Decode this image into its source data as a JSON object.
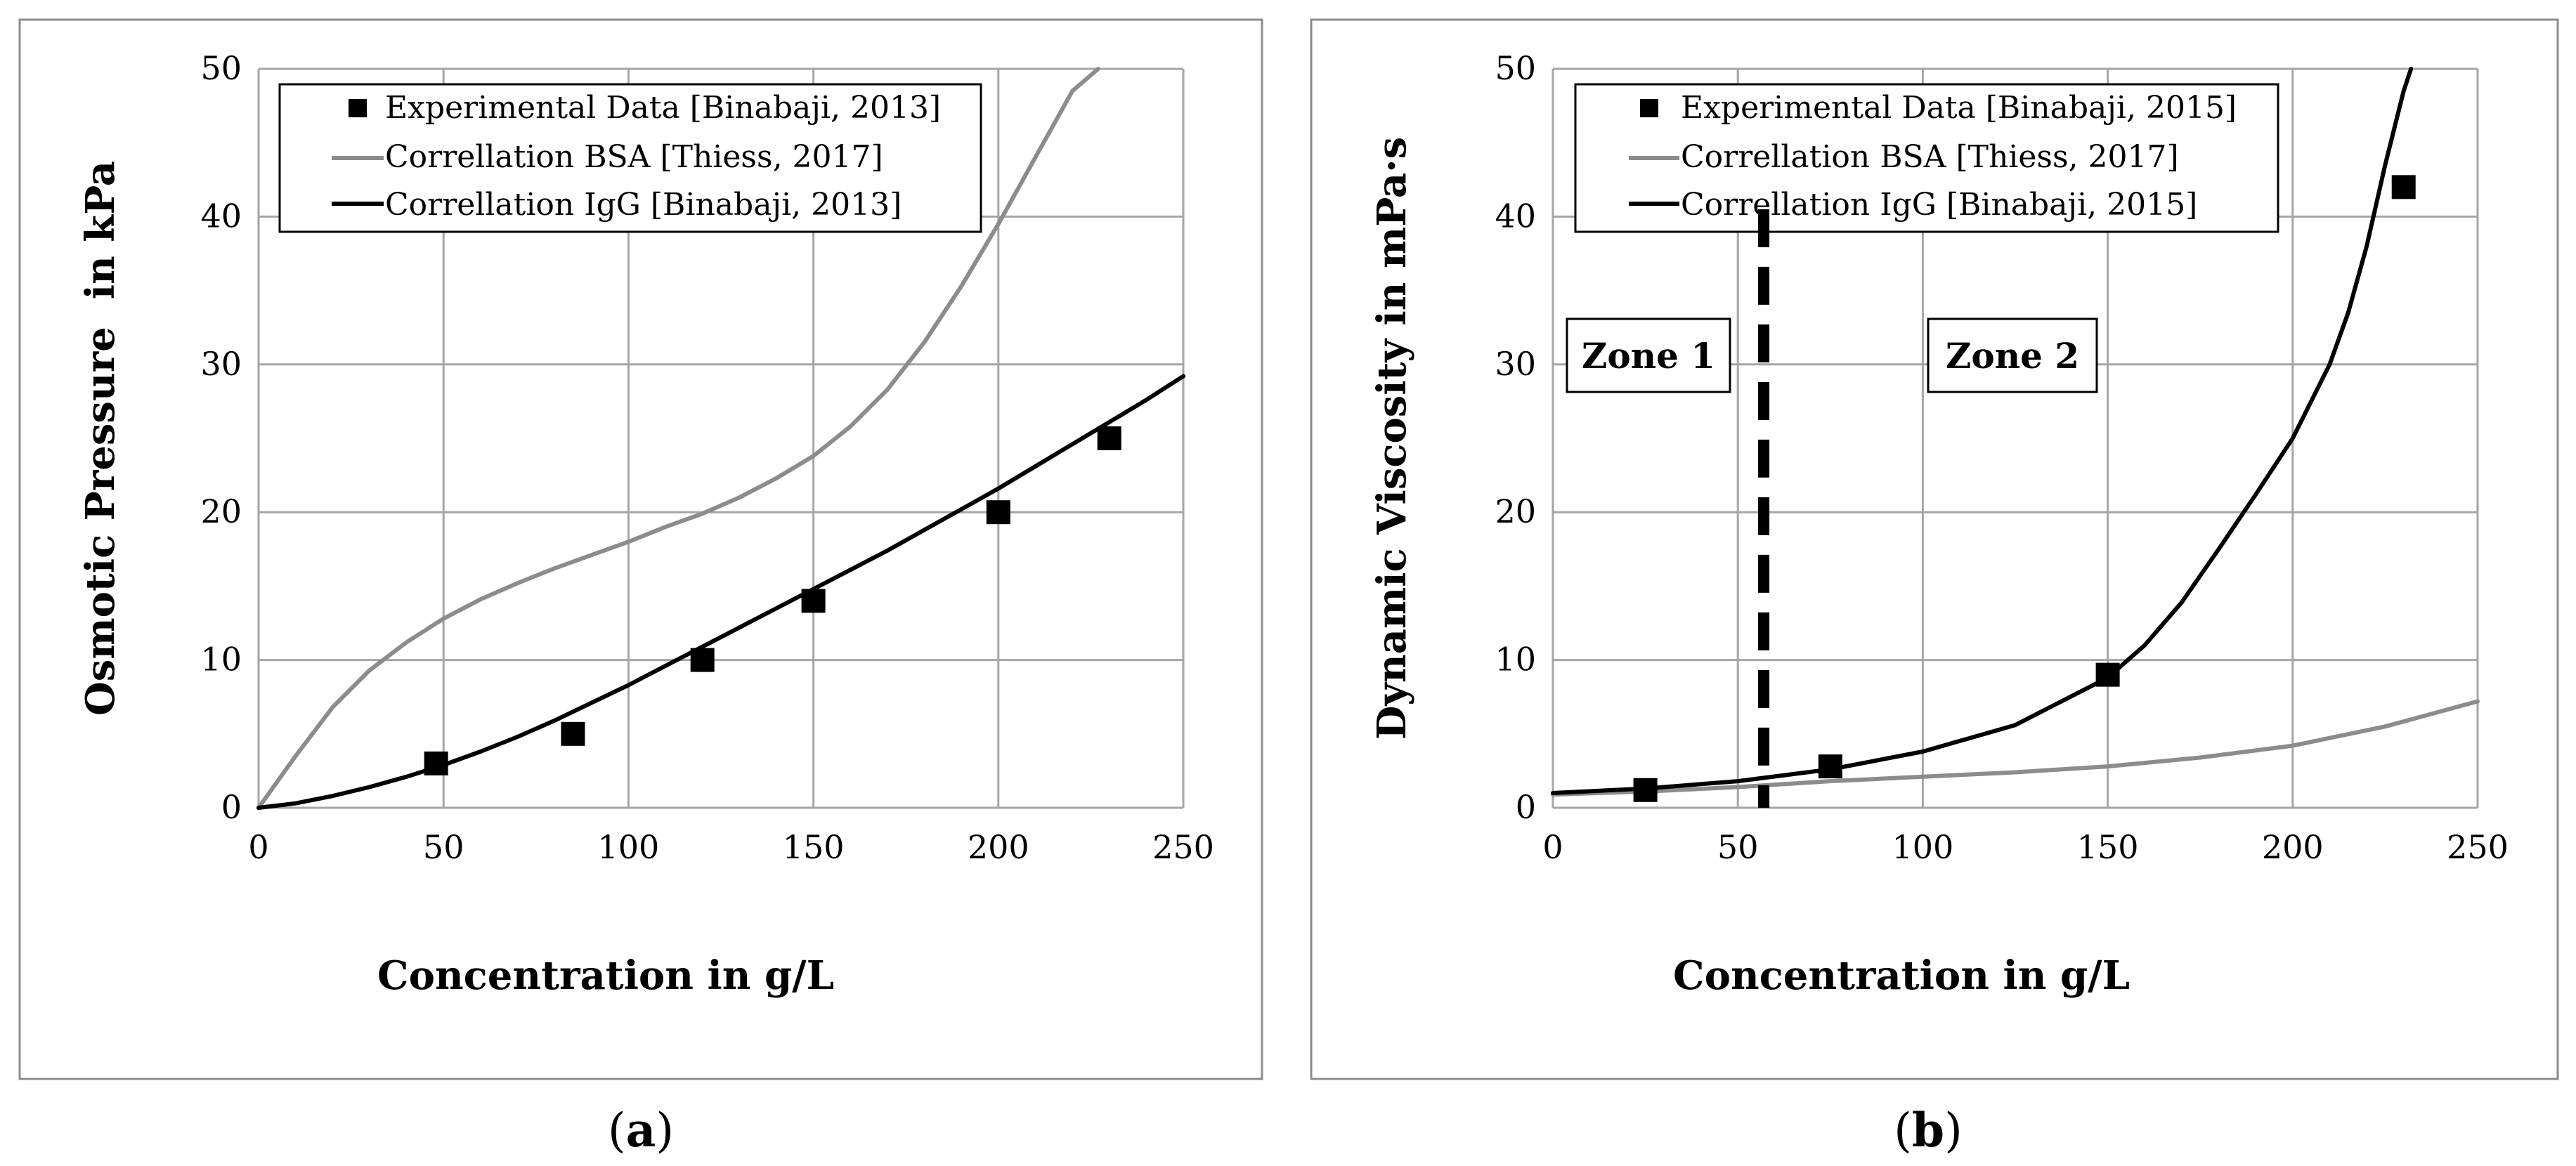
{
  "colors": {
    "experimental": "#000000",
    "bsa": "#8c8c8c",
    "igg": "#000000",
    "grid": "#a6a6a6",
    "frame": "#8c8c8c",
    "zone_line": "#000000"
  },
  "chart_data": [
    {
      "type": "line",
      "panel_label_open": "(",
      "panel_label_letter": "a",
      "panel_label_close": ")",
      "xlabel": "Concentration in g/L",
      "ylabel": "Osmotic Pressure  in kPa",
      "xlim": [
        0,
        250
      ],
      "ylim": [
        0,
        50
      ],
      "xticks": [
        0,
        50,
        100,
        150,
        200,
        250
      ],
      "yticks": [
        0,
        10,
        20,
        30,
        40,
        50
      ],
      "grid": true,
      "legend_position": "top",
      "series": [
        {
          "name": "Experimental Data [Binabaji, 2013]",
          "kind": "scatter",
          "marker": "square",
          "color_key": "experimental",
          "x": [
            48,
            85,
            120,
            150,
            200,
            230
          ],
          "y": [
            3,
            5,
            10,
            14,
            20,
            25
          ]
        },
        {
          "name": "Correllation BSA [Thiess, 2017]",
          "kind": "line",
          "color_key": "bsa",
          "x": [
            0,
            10,
            20,
            30,
            40,
            50,
            60,
            70,
            80,
            90,
            100,
            110,
            120,
            130,
            140,
            150,
            160,
            170,
            180,
            190,
            200,
            210,
            220,
            227
          ],
          "y": [
            0,
            3.5,
            6.8,
            9.3,
            11.2,
            12.8,
            14.1,
            15.2,
            16.2,
            17.1,
            18.0,
            19.0,
            19.9,
            21.0,
            22.3,
            23.8,
            25.8,
            28.3,
            31.5,
            35.3,
            39.5,
            44.0,
            48.5,
            50.0
          ]
        },
        {
          "name": "Correllation IgG [Binabaji, 2013]",
          "kind": "line",
          "color_key": "igg",
          "x": [
            0,
            10,
            20,
            30,
            40,
            50,
            60,
            70,
            80,
            90,
            100,
            110,
            120,
            130,
            140,
            150,
            160,
            170,
            180,
            190,
            200,
            210,
            220,
            230,
            240,
            250
          ],
          "y": [
            0,
            0.3,
            0.8,
            1.4,
            2.1,
            2.9,
            3.8,
            4.8,
            5.9,
            7.1,
            8.3,
            9.6,
            10.9,
            12.2,
            13.5,
            14.8,
            16.1,
            17.4,
            18.8,
            20.2,
            21.6,
            23.1,
            24.6,
            26.1,
            27.6,
            29.2
          ]
        }
      ]
    },
    {
      "type": "line",
      "panel_label_open": "(",
      "panel_label_letter": "b",
      "panel_label_close": ")",
      "xlabel": "Concentration in g/L",
      "ylabel": "Dynamic Viscosity in mPa·s",
      "xlim": [
        0,
        250
      ],
      "ylim": [
        0,
        50
      ],
      "xticks": [
        0,
        50,
        100,
        150,
        200,
        250
      ],
      "yticks": [
        0,
        10,
        20,
        30,
        40,
        50
      ],
      "grid": true,
      "legend_position": "top",
      "zone_divider_x": 57,
      "zones": [
        {
          "label": "Zone 1",
          "x": 25,
          "y": 30.0
        },
        {
          "label": "Zone 2",
          "x": 110,
          "y": 30.0
        }
      ],
      "series": [
        {
          "name": "Experimental Data [Binabaji, 2015]",
          "kind": "scatter",
          "marker": "square",
          "color_key": "experimental",
          "x": [
            25,
            75,
            150,
            230
          ],
          "y": [
            1.2,
            2.8,
            9.0,
            42.0
          ]
        },
        {
          "name": "Correllation BSA [Thiess, 2017]",
          "kind": "line",
          "color_key": "bsa",
          "x": [
            0,
            25,
            50,
            75,
            100,
            125,
            150,
            175,
            200,
            225,
            250
          ],
          "y": [
            0.9,
            1.1,
            1.4,
            1.8,
            2.1,
            2.4,
            2.8,
            3.4,
            4.2,
            5.5,
            7.2
          ]
        },
        {
          "name": "Correllation IgG [Binabaji, 2015]",
          "kind": "line",
          "color_key": "igg",
          "x": [
            0,
            25,
            50,
            75,
            100,
            125,
            150,
            160,
            170,
            180,
            190,
            200,
            210,
            215,
            220,
            225,
            230,
            232
          ],
          "y": [
            1.0,
            1.3,
            1.8,
            2.6,
            3.8,
            5.6,
            8.8,
            11.0,
            13.9,
            17.5,
            21.2,
            25.0,
            30.0,
            33.5,
            38.0,
            43.5,
            48.5,
            50.0
          ]
        }
      ]
    }
  ]
}
